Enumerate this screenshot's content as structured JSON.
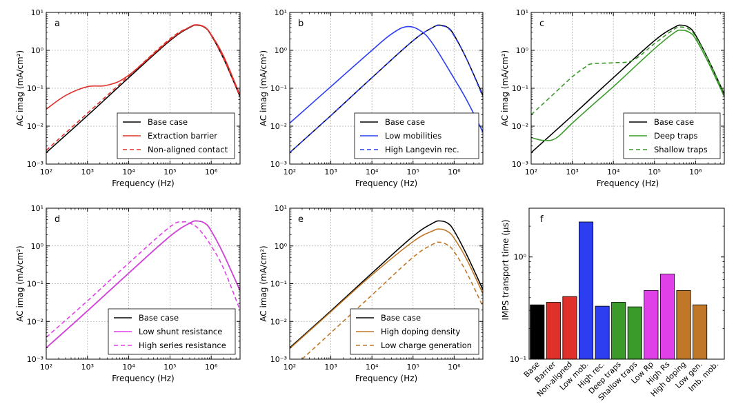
{
  "chart_data": [
    {
      "id": "a",
      "type": "line",
      "panel_label": "a",
      "xlabel": "Frequency (Hz)",
      "ylabel": "AC imag  (mA/cm²)",
      "xscale": "log",
      "yscale": "log",
      "xlim": [
        100,
        5000000
      ],
      "ylim": [
        0.001,
        10
      ],
      "x_tick_labels": [
        "10²",
        "10³",
        "10⁴",
        "10⁵",
        "10⁶"
      ],
      "y_tick_labels": [
        "10⁻³",
        "10⁻²",
        "10⁻¹",
        "10⁰",
        "10¹"
      ],
      "grid": true,
      "legend_position": "lower-right",
      "series": [
        {
          "name": "Base case",
          "color": "#000000",
          "dash": "solid",
          "x": [
            100,
            1000,
            10000,
            100000,
            300000,
            450000,
            700000,
            1000000,
            2000000,
            5000000
          ],
          "y": [
            0.002,
            0.019,
            0.19,
            1.8,
            4.0,
            4.6,
            4.0,
            2.5,
            0.6,
            0.06
          ]
        },
        {
          "name": "Extraction barrier",
          "color": "#e0302a",
          "dash": "solid",
          "x": [
            100,
            300,
            1000,
            3000,
            10000,
            100000,
            300000,
            450000,
            700000,
            1000000,
            2000000,
            5000000
          ],
          "y": [
            0.028,
            0.065,
            0.11,
            0.12,
            0.22,
            1.9,
            4.1,
            4.7,
            4.1,
            2.6,
            0.7,
            0.065
          ]
        },
        {
          "name": "Non-aligned contact",
          "color": "#e0302a",
          "dash": "dashed",
          "x": [
            100,
            1000,
            10000,
            100000,
            300000,
            450000,
            700000,
            1000000,
            2000000,
            5000000
          ],
          "y": [
            0.0023,
            0.022,
            0.21,
            2.0,
            4.1,
            4.6,
            4.0,
            2.5,
            0.6,
            0.06
          ]
        }
      ]
    },
    {
      "id": "b",
      "type": "line",
      "panel_label": "b",
      "xlabel": "Frequency (Hz)",
      "ylabel": "AC imag  (mA/cm²)",
      "xscale": "log",
      "yscale": "log",
      "xlim": [
        100,
        5000000
      ],
      "ylim": [
        0.001,
        10
      ],
      "x_tick_labels": [
        "10²",
        "10³",
        "10⁴",
        "10⁵",
        "10⁶"
      ],
      "y_tick_labels": [
        "10⁻³",
        "10⁻²",
        "10⁻¹",
        "10⁰",
        "10¹"
      ],
      "grid": true,
      "legend_position": "lower-right",
      "series": [
        {
          "name": "Base case",
          "color": "#000000",
          "dash": "solid",
          "x": [
            100,
            1000,
            10000,
            100000,
            300000,
            450000,
            700000,
            1000000,
            2000000,
            5000000
          ],
          "y": [
            0.002,
            0.019,
            0.19,
            1.8,
            4.0,
            4.6,
            4.0,
            2.5,
            0.6,
            0.065
          ]
        },
        {
          "name": "Low mobilities",
          "color": "#2c3ef0",
          "dash": "solid",
          "x": [
            100,
            1000,
            10000,
            30000,
            70000,
            150000,
            300000,
            1000000,
            2000000,
            5000000
          ],
          "y": [
            0.012,
            0.11,
            1.0,
            2.7,
            4.2,
            3.3,
            1.5,
            0.18,
            0.05,
            0.007
          ]
        },
        {
          "name": "High Langevin rec.",
          "color": "#2c3ef0",
          "dash": "dashed",
          "x": [
            100,
            1000,
            10000,
            100000,
            300000,
            450000,
            700000,
            1000000,
            2000000,
            5000000
          ],
          "y": [
            0.002,
            0.019,
            0.19,
            1.8,
            4.0,
            4.5,
            3.9,
            2.4,
            0.6,
            0.06
          ]
        }
      ]
    },
    {
      "id": "c",
      "type": "line",
      "panel_label": "c",
      "xlabel": "Frequency (Hz)",
      "ylabel": "AC imag  (mA/cm²)",
      "xscale": "log",
      "yscale": "log",
      "xlim": [
        100,
        5000000
      ],
      "ylim": [
        0.001,
        10
      ],
      "x_tick_labels": [
        "10²",
        "10³",
        "10⁴",
        "10⁵",
        "10⁶"
      ],
      "y_tick_labels": [
        "10⁻³",
        "10⁻²",
        "10⁻¹",
        "10⁰",
        "10¹"
      ],
      "grid": true,
      "legend_position": "lower-right",
      "series": [
        {
          "name": "Base case",
          "color": "#000000",
          "dash": "solid",
          "x": [
            100,
            1000,
            10000,
            100000,
            300000,
            450000,
            700000,
            1000000,
            2000000,
            5000000
          ],
          "y": [
            0.002,
            0.019,
            0.19,
            1.8,
            4.0,
            4.6,
            4.0,
            2.5,
            0.6,
            0.07
          ]
        },
        {
          "name": "Deep traps",
          "color": "#3a9a2a",
          "dash": "solid",
          "x": [
            100,
            200,
            400,
            1000,
            3000,
            10000,
            100000,
            300000,
            450000,
            700000,
            1000000,
            2000000,
            5000000
          ],
          "y": [
            0.005,
            0.0042,
            0.0048,
            0.012,
            0.035,
            0.11,
            1.1,
            2.9,
            3.4,
            3.0,
            2.0,
            0.5,
            0.06
          ]
        },
        {
          "name": "Shallow traps",
          "color": "#3a9a2a",
          "dash": "dashed",
          "x": [
            100,
            300,
            1000,
            2000,
            3000,
            10000,
            30000,
            100000,
            300000,
            450000,
            700000,
            1000000,
            2000000,
            5000000
          ],
          "y": [
            0.02,
            0.06,
            0.2,
            0.35,
            0.44,
            0.47,
            0.55,
            1.5,
            3.6,
            4.1,
            3.6,
            2.3,
            0.6,
            0.07
          ]
        }
      ]
    },
    {
      "id": "d",
      "type": "line",
      "panel_label": "d",
      "xlabel": "Frequency (Hz)",
      "ylabel": "AC imag  (mA/cm²)",
      "xscale": "log",
      "yscale": "log",
      "xlim": [
        100,
        5000000
      ],
      "ylim": [
        0.001,
        10
      ],
      "x_tick_labels": [
        "10²",
        "10³",
        "10⁴",
        "10⁵",
        "10⁶"
      ],
      "y_tick_labels": [
        "10⁻³",
        "10⁻²",
        "10⁻¹",
        "10⁰",
        "10¹"
      ],
      "grid": true,
      "legend_position": "lower-right",
      "series": [
        {
          "name": "Base case",
          "color": "#000000",
          "dash": "solid",
          "x": [
            100,
            1000,
            10000,
            100000,
            300000,
            450000,
            700000,
            1000000,
            2000000,
            5000000
          ],
          "y": [
            0.002,
            0.019,
            0.19,
            1.8,
            4.0,
            4.6,
            4.0,
            2.5,
            0.6,
            0.065
          ]
        },
        {
          "name": "Low shunt resistance",
          "color": "#e040e8",
          "dash": "solid",
          "x": [
            100,
            1000,
            10000,
            100000,
            300000,
            450000,
            700000,
            1000000,
            2000000,
            5000000
          ],
          "y": [
            0.002,
            0.019,
            0.19,
            1.8,
            4.0,
            4.6,
            4.0,
            2.5,
            0.6,
            0.065
          ]
        },
        {
          "name": "High series resistance",
          "color": "#e040e8",
          "dash": "dashed",
          "x": [
            100,
            1000,
            10000,
            100000,
            200000,
            300000,
            500000,
            1000000,
            2000000,
            5000000
          ],
          "y": [
            0.0038,
            0.035,
            0.35,
            3.2,
            4.3,
            4.0,
            2.8,
            1.0,
            0.25,
            0.02
          ]
        }
      ]
    },
    {
      "id": "e",
      "type": "line",
      "panel_label": "e",
      "xlabel": "Frequency (Hz)",
      "ylabel": "AC imag  (mA/cm²)",
      "xscale": "log",
      "yscale": "log",
      "xlim": [
        100,
        5000000
      ],
      "ylim": [
        0.001,
        10
      ],
      "x_tick_labels": [
        "10²",
        "10³",
        "10⁴",
        "10⁵",
        "10⁶"
      ],
      "y_tick_labels": [
        "10⁻³",
        "10⁻²",
        "10⁻¹",
        "10⁰",
        "10¹"
      ],
      "grid": true,
      "legend_position": "lower-right",
      "series": [
        {
          "name": "Base case",
          "color": "#000000",
          "dash": "solid",
          "x": [
            100,
            1000,
            10000,
            100000,
            300000,
            450000,
            700000,
            1000000,
            2000000,
            5000000
          ],
          "y": [
            0.002,
            0.019,
            0.19,
            1.8,
            4.0,
            4.6,
            4.0,
            2.5,
            0.6,
            0.07
          ]
        },
        {
          "name": "High doping density",
          "color": "#c07828",
          "dash": "solid",
          "x": [
            100,
            1000,
            10000,
            100000,
            300000,
            450000,
            700000,
            1000000,
            2000000,
            5000000
          ],
          "y": [
            0.0019,
            0.018,
            0.17,
            1.3,
            2.5,
            2.8,
            2.4,
            1.6,
            0.45,
            0.055
          ]
        },
        {
          "name": "Low charge generation",
          "color": "#c07828",
          "dash": "dashed",
          "x": [
            200,
            1000,
            10000,
            100000,
            300000,
            450000,
            700000,
            1000000,
            2000000,
            5000000
          ],
          "y": [
            0.001,
            0.005,
            0.05,
            0.5,
            1.1,
            1.25,
            1.05,
            0.7,
            0.2,
            0.025
          ]
        }
      ]
    },
    {
      "id": "f",
      "type": "bar",
      "panel_label": "f",
      "ylabel": "IMPS transport time (μs)",
      "yscale": "log",
      "ylim": [
        0.1,
        3
      ],
      "y_tick_labels": [
        "10⁻¹",
        "10⁰"
      ],
      "grid": false,
      "categories": [
        "Base",
        "Barrier",
        "Non-aligned",
        "Low mob.",
        "High rec.",
        "Deep traps",
        "Shallow traps",
        "Low Rp",
        "High Rs",
        "High doping",
        "Low gen.",
        "Imb. mob."
      ],
      "values": [
        0.34,
        0.36,
        0.41,
        2.2,
        0.33,
        0.36,
        0.325,
        0.47,
        0.68,
        0.47,
        0.34,
        0.0
      ],
      "colors": [
        "#000000",
        "#e0302a",
        "#e0302a",
        "#2c3ef0",
        "#2c3ef0",
        "#3a9a2a",
        "#3a9a2a",
        "#e040e8",
        "#e040e8",
        "#c07828",
        "#c07828",
        "#c07828"
      ]
    }
  ]
}
